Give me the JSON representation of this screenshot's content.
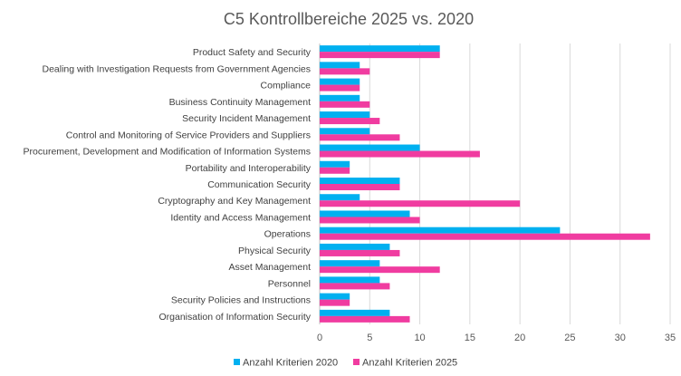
{
  "chart_data": {
    "type": "bar",
    "orientation": "horizontal",
    "title": "C5 Kontrollbereiche 2025 vs. 2020",
    "xlabel": "",
    "ylabel": "",
    "xlim": [
      0,
      35
    ],
    "xticks": [
      "0",
      "5",
      "10",
      "15",
      "20",
      "25",
      "30",
      "35"
    ],
    "grid": true,
    "legend_position": "bottom",
    "categories": [
      "Product Safety and Security",
      "Dealing with Investigation Requests from Government Agencies",
      "Compliance",
      "Business Continuity Management",
      "Security Incident Management",
      "Control and Monitoring of Service Providers and Suppliers",
      "Procurement, Development and Modification of Information Systems",
      "Portability and Interoperability",
      "Communication Security",
      "Cryptography and Key Management",
      "Identity and Access Management",
      "Operations",
      "Physical Security",
      "Asset Management",
      "Personnel",
      "Security Policies and Instructions",
      "Organisation of Information Security"
    ],
    "series": [
      {
        "name": "Anzahl Kriterien 2020",
        "color": "#00b0f0",
        "values": [
          12,
          4,
          4,
          4,
          5,
          5,
          10,
          3,
          8,
          4,
          9,
          24,
          7,
          6,
          6,
          3,
          7
        ]
      },
      {
        "name": "Anzahl Kriterien 2025",
        "color": "#f03ca0",
        "values": [
          12,
          5,
          4,
          5,
          6,
          8,
          16,
          3,
          8,
          20,
          10,
          33,
          8,
          12,
          7,
          3,
          9
        ]
      }
    ]
  }
}
